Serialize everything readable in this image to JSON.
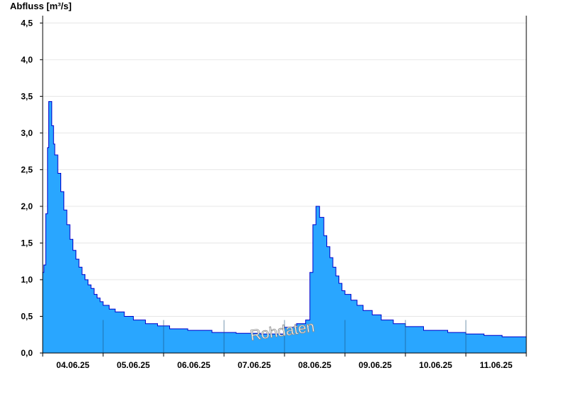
{
  "chart_data": {
    "type": "area",
    "ylabel": "Abfluss [m³/s]",
    "watermark": "Rohdaten",
    "y_ticks": [
      "0,0",
      "0,5",
      "1,0",
      "1,5",
      "2,0",
      "2,5",
      "3,0",
      "3,5",
      "4,0",
      "4,5"
    ],
    "y_tick_values": [
      0,
      0.5,
      1.0,
      1.5,
      2.0,
      2.5,
      3.0,
      3.5,
      4.0,
      4.5
    ],
    "ylim": [
      0,
      4.6
    ],
    "xlim": [
      0,
      8
    ],
    "x_ticks": [
      "04.06.25",
      "05.06.25",
      "06.06.25",
      "07.06.25",
      "08.06.25",
      "09.06.25",
      "10.06.25",
      "11.06.25"
    ],
    "grid": "horizontal",
    "colors": {
      "fill": "#29a6ff",
      "line": "#0000cc",
      "grid": "#e6e6e6",
      "axis": "#000000"
    },
    "series": [
      {
        "x": [
          0,
          0.02,
          0.05,
          0.08,
          0.1,
          0.12,
          0.15,
          0.18,
          0.2,
          0.25,
          0.3,
          0.35,
          0.4,
          0.45,
          0.5,
          0.55,
          0.6,
          0.65,
          0.7,
          0.75,
          0.8,
          0.85,
          0.9,
          0.95,
          1.0,
          1.1,
          1.2,
          1.35,
          1.5,
          1.7,
          1.9,
          2.1,
          2.4,
          2.8,
          3.2,
          3.6,
          4.0,
          4.2,
          4.35,
          4.42,
          4.47,
          4.52,
          4.58,
          4.65,
          4.7,
          4.75,
          4.8,
          4.85,
          4.9,
          4.95,
          5.0,
          5.1,
          5.2,
          5.3,
          5.45,
          5.6,
          5.8,
          6.0,
          6.3,
          6.7,
          7.0,
          7.3,
          7.6,
          8.0
        ],
        "y": [
          1.1,
          1.2,
          1.9,
          2.8,
          3.43,
          3.43,
          3.1,
          2.85,
          2.7,
          2.45,
          2.2,
          1.95,
          1.75,
          1.55,
          1.4,
          1.28,
          1.17,
          1.07,
          1.0,
          0.93,
          0.88,
          0.8,
          0.75,
          0.7,
          0.65,
          0.6,
          0.56,
          0.5,
          0.45,
          0.4,
          0.37,
          0.33,
          0.31,
          0.28,
          0.27,
          0.26,
          0.35,
          0.4,
          0.45,
          1.1,
          1.75,
          2.0,
          1.85,
          1.6,
          1.45,
          1.3,
          1.17,
          1.05,
          0.95,
          0.85,
          0.8,
          0.72,
          0.65,
          0.58,
          0.52,
          0.45,
          0.4,
          0.36,
          0.31,
          0.28,
          0.26,
          0.24,
          0.22,
          0.2
        ]
      }
    ]
  }
}
